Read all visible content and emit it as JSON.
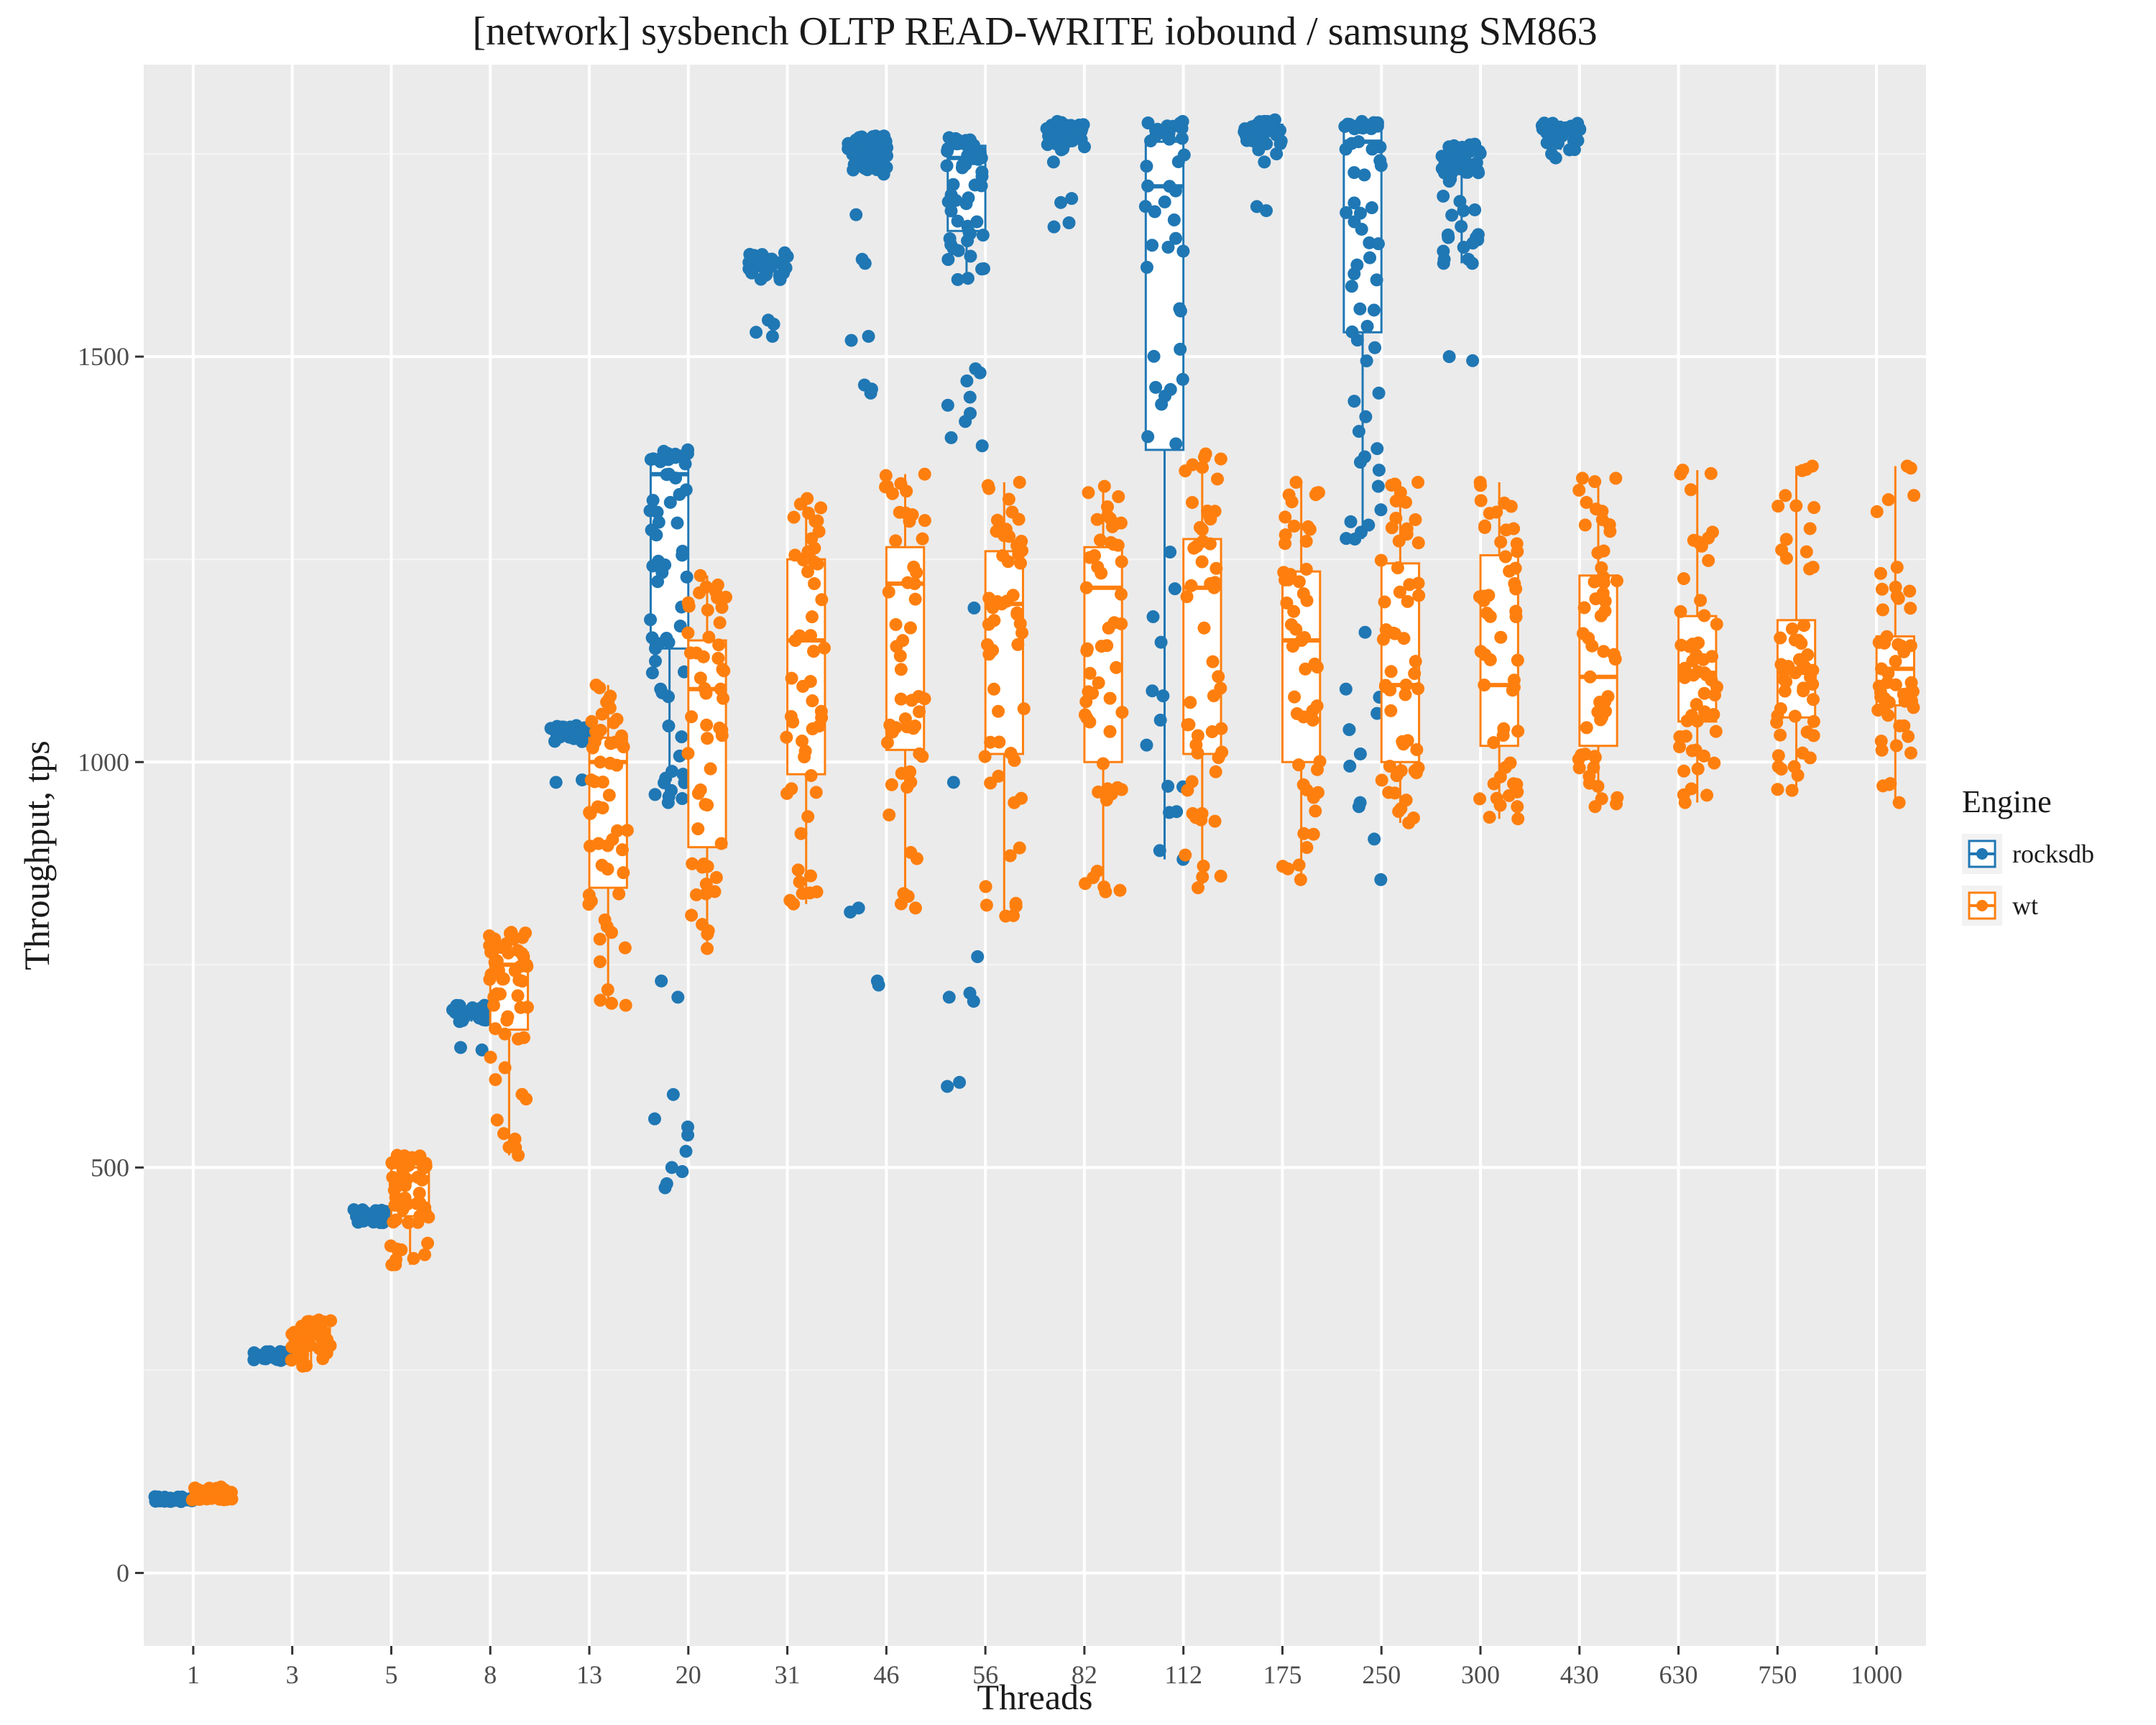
{
  "chart_data": {
    "type": "box",
    "title": "[network] sysbench OLTP READ-WRITE iobound / samsung SM863",
    "xlabel": "Threads",
    "ylabel": "Throughput, tps",
    "categories": [
      "1",
      "3",
      "5",
      "8",
      "13",
      "20",
      "31",
      "46",
      "56",
      "82",
      "112",
      "175",
      "250",
      "300",
      "430",
      "630",
      "750",
      "1000"
    ],
    "y_ticks": [
      0,
      500,
      1000,
      1500
    ],
    "ylim": [
      -90,
      1860
    ],
    "grid": true,
    "legend": {
      "title": "Engine",
      "placement": "right"
    },
    "series": [
      {
        "name": "rocksdb",
        "color": "#1f77b4",
        "boxes": [
          {
            "min": 88,
            "q1": 89,
            "median": 90,
            "q3": 92,
            "max": 94
          },
          {
            "min": 262,
            "q1": 265,
            "median": 268,
            "q3": 270,
            "max": 273
          },
          {
            "min": 432,
            "q1": 437,
            "median": 440,
            "q3": 444,
            "max": 448
          },
          {
            "min": 680,
            "q1": 686,
            "median": 690,
            "q3": 695,
            "max": 700
          },
          {
            "min": 1025,
            "q1": 1030,
            "median": 1035,
            "q3": 1040,
            "max": 1045
          },
          {
            "min": 955,
            "q1": 1140,
            "median": 1355,
            "q3": 1372,
            "max": 1385
          },
          {
            "min": 1595,
            "q1": 1605,
            "median": 1612,
            "q3": 1620,
            "max": 1628
          },
          {
            "min": 1725,
            "q1": 1745,
            "median": 1758,
            "q3": 1765,
            "max": 1772
          },
          {
            "min": 1595,
            "q1": 1655,
            "median": 1745,
            "q3": 1760,
            "max": 1770
          },
          {
            "min": 1755,
            "q1": 1770,
            "median": 1778,
            "q3": 1785,
            "max": 1790
          },
          {
            "min": 880,
            "q1": 1385,
            "median": 1710,
            "q3": 1765,
            "max": 1790
          },
          {
            "min": 1755,
            "q1": 1772,
            "median": 1780,
            "q3": 1786,
            "max": 1792
          },
          {
            "min": 1275,
            "q1": 1530,
            "median": 1765,
            "q3": 1780,
            "max": 1790
          },
          {
            "min": 1615,
            "q1": 1725,
            "median": 1738,
            "q3": 1752,
            "max": 1762
          },
          {
            "min": 1755,
            "q1": 1775,
            "median": 1780,
            "q3": 1784,
            "max": 1788
          }
        ],
        "outliers": [
          [],
          [],
          [],
          [
            645,
            648
          ],
          [
            975,
            978
          ],
          [
            475,
            480,
            495,
            500,
            520,
            540,
            550,
            560,
            590,
            710,
            730,
            950,
            960,
            985,
            1090,
            1110,
            1140,
            1260,
            1280,
            1310,
            1330
          ],
          [
            1525,
            1530,
            1540,
            1545
          ],
          [
            725,
            730,
            815,
            820,
            1455,
            1460,
            1465,
            1520,
            1525,
            1615,
            1620,
            1675
          ],
          [
            600,
            605,
            705,
            710,
            715,
            760,
            975,
            1190,
            1390,
            1400,
            1420,
            1430,
            1440,
            1450,
            1470,
            1480,
            1485
          ],
          [
            1660,
            1665,
            1690,
            1695,
            1740
          ],
          [],
          [
            1680,
            1685,
            1740,
            1750
          ],
          [
            855,
            905,
            945,
            950,
            995,
            1010,
            1040,
            1060,
            1080,
            1090,
            1160,
            1340,
            1360,
            1445,
            1455
          ],
          [
            1495,
            1500,
            1615,
            1620,
            1630,
            1640,
            1650,
            1680
          ],
          [
            1745,
            1750
          ]
        ]
      },
      {
        "name": "wt",
        "color": "#ff7f0e",
        "boxes": [
          {
            "min": 90,
            "q1": 92,
            "median": 97,
            "q3": 102,
            "max": 106
          },
          {
            "min": 255,
            "q1": 280,
            "median": 292,
            "q3": 302,
            "max": 312
          },
          {
            "min": 380,
            "q1": 440,
            "median": 488,
            "q3": 500,
            "max": 515
          },
          {
            "min": 515,
            "q1": 670,
            "median": 750,
            "q3": 765,
            "max": 790
          },
          {
            "min": 700,
            "q1": 845,
            "median": 1000,
            "q3": 1030,
            "max": 1095
          },
          {
            "min": 770,
            "q1": 895,
            "median": 1090,
            "q3": 1150,
            "max": 1230
          },
          {
            "min": 825,
            "q1": 985,
            "median": 1150,
            "q3": 1250,
            "max": 1325
          },
          {
            "min": 820,
            "q1": 1015,
            "median": 1220,
            "q3": 1265,
            "max": 1355
          },
          {
            "min": 810,
            "q1": 1010,
            "median": 1195,
            "q3": 1260,
            "max": 1345
          },
          {
            "min": 840,
            "q1": 1000,
            "median": 1215,
            "q3": 1265,
            "max": 1340
          },
          {
            "min": 845,
            "q1": 1010,
            "median": 1215,
            "q3": 1275,
            "max": 1380
          },
          {
            "min": 855,
            "q1": 1000,
            "median": 1150,
            "q3": 1235,
            "max": 1345
          },
          {
            "min": 925,
            "q1": 1000,
            "median": 1095,
            "q3": 1245,
            "max": 1345
          },
          {
            "min": 930,
            "q1": 1020,
            "median": 1095,
            "q3": 1255,
            "max": 1345
          },
          {
            "min": 945,
            "q1": 1020,
            "median": 1105,
            "q3": 1230,
            "max": 1350
          },
          {
            "min": 950,
            "q1": 1050,
            "median": 1110,
            "q3": 1180,
            "max": 1360
          },
          {
            "min": 965,
            "q1": 1055,
            "median": 1110,
            "q3": 1175,
            "max": 1365
          },
          {
            "min": 950,
            "q1": 1070,
            "median": 1115,
            "q3": 1155,
            "max": 1365
          }
        ],
        "outliers": [
          [],
          [],
          [],
          [],
          [],
          [],
          [],
          [],
          [],
          [],
          [],
          [],
          [],
          [],
          [],
          [],
          [],
          []
        ]
      }
    ]
  }
}
